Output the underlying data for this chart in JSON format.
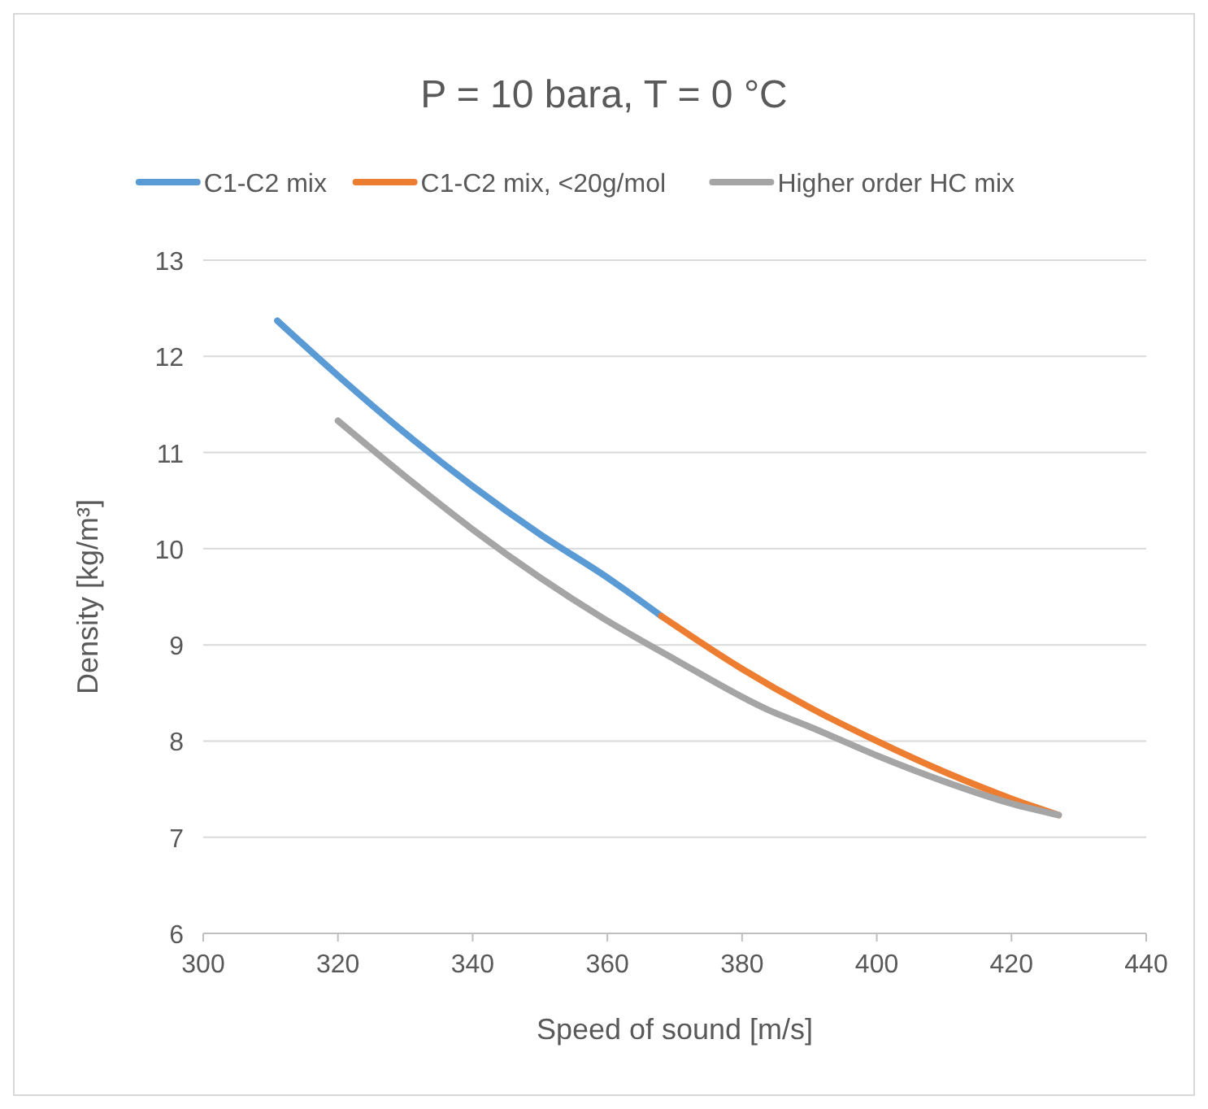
{
  "chart_data": {
    "type": "line",
    "title": "P = 10 bara, T = 0 °C",
    "xlabel": "Speed of sound [m/s]",
    "ylabel": "Density [kg/m³]",
    "xlim": [
      300,
      440
    ],
    "xticks": [
      300,
      320,
      340,
      360,
      380,
      400,
      420,
      440
    ],
    "ylim": [
      6,
      13
    ],
    "yticks": [
      6,
      7,
      8,
      9,
      10,
      11,
      12,
      13
    ],
    "grid": "y",
    "legend": "top",
    "marker": "none",
    "line_style": "solid",
    "series": [
      {
        "name": "C1-C2 mix",
        "color": "#5b9bd5",
        "x": [
          311,
          320,
          330,
          340,
          350,
          360,
          368
        ],
        "values": [
          12.37,
          11.8,
          11.2,
          10.65,
          10.15,
          9.7,
          9.3
        ]
      },
      {
        "name": "C1-C2 mix, <20g/mol",
        "color": "#ed7d31",
        "x": [
          368,
          380,
          390,
          400,
          410,
          420,
          427
        ],
        "values": [
          9.3,
          8.75,
          8.35,
          8.0,
          7.68,
          7.4,
          7.23
        ]
      },
      {
        "name": "Higher order HC mix",
        "color": "#a5a5a5",
        "x": [
          320,
          330,
          340,
          350,
          360,
          370,
          384,
          390,
          400,
          410,
          420,
          427
        ],
        "values": [
          11.33,
          10.75,
          10.2,
          9.7,
          9.25,
          8.85,
          8.32,
          8.15,
          7.85,
          7.58,
          7.35,
          7.23
        ]
      }
    ]
  }
}
